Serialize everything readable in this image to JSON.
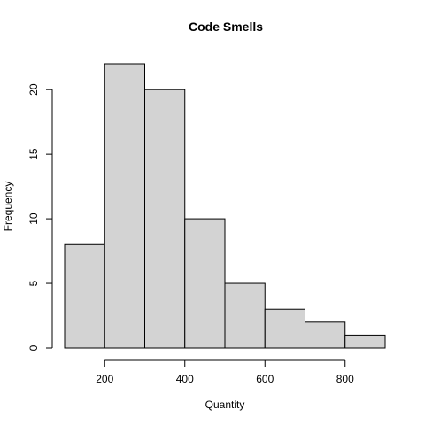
{
  "chart_data": {
    "type": "bar",
    "title": "Code Smells",
    "xlabel": "Quantity",
    "ylabel": "Frequency",
    "bins": [
      {
        "start": 100,
        "end": 200,
        "count": 8
      },
      {
        "start": 200,
        "end": 300,
        "count": 22
      },
      {
        "start": 300,
        "end": 400,
        "count": 20
      },
      {
        "start": 400,
        "end": 500,
        "count": 10
      },
      {
        "start": 500,
        "end": 600,
        "count": 5
      },
      {
        "start": 600,
        "end": 700,
        "count": 3
      },
      {
        "start": 700,
        "end": 800,
        "count": 2
      },
      {
        "start": 800,
        "end": 900,
        "count": 1
      }
    ],
    "xticks": [
      200,
      400,
      600,
      800
    ],
    "yticks": [
      0,
      5,
      10,
      15,
      20
    ],
    "xlim": [
      100,
      900
    ],
    "ylim": [
      0,
      22
    ],
    "grid": false,
    "legend": "none"
  }
}
